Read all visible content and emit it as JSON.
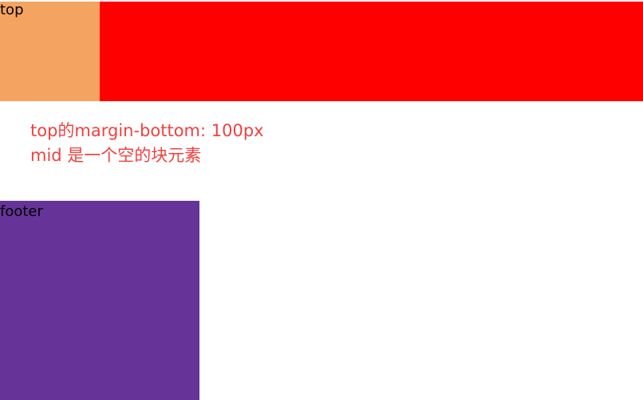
{
  "top": {
    "label": "top"
  },
  "note": {
    "line1": "top的margin-bottom: 100px",
    "line2": "mid 是一个空的块元素"
  },
  "footer": {
    "label": "footer"
  },
  "colors": {
    "top_row": "#ff0000",
    "top_box": "#f4a460",
    "note_text": "#f0413f",
    "footer": "#663399"
  }
}
